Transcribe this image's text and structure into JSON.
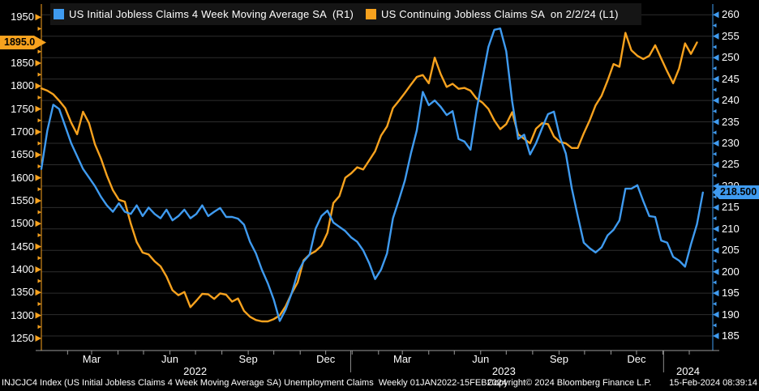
{
  "legend": {
    "series1_label": "US Initial Jobless Claims 4 Week Moving Average SA  (R1)",
    "series2_label": "US Continuing Jobless Claims SA  on 2/2/24 (L1)"
  },
  "badges": {
    "left_value": "1895.0",
    "right_value": "218.500"
  },
  "footer": {
    "left": "INJCJC4 Index (US Initial Jobless Claims 4 Week Moving Average SA) Unemployment Claims  Weekly 01JAN2022-15FEB2024",
    "center": "Copyright© 2024 Bloomberg Finance L.P.",
    "right": "15-Feb-2024 08:39:14"
  },
  "colors": {
    "blue": "#3f9bf0",
    "orange": "#f7a21e",
    "grid": "#2d2d2d",
    "axis_gray": "#9a9a9a",
    "separator": "#8a8a8a"
  },
  "chart_data": {
    "type": "line",
    "title": "",
    "x_axis": {
      "start": "01JAN2022",
      "end": "15FEB2024",
      "frequency": "weekly",
      "month_labels": [
        {
          "label": "Mar",
          "week": 8.43
        },
        {
          "label": "Jun",
          "week": 21.57
        },
        {
          "label": "Sep",
          "week": 34.71
        },
        {
          "label": "Dec",
          "week": 47.71
        },
        {
          "label": "Mar",
          "week": 60.57
        },
        {
          "label": "Jun",
          "week": 73.71
        },
        {
          "label": "Sep",
          "week": 86.86
        },
        {
          "label": "Dec",
          "week": 99.86
        }
      ],
      "year_labels": [
        {
          "label": "2022",
          "week": 25.8
        },
        {
          "label": "2023",
          "week": 77.6
        },
        {
          "label": "2024",
          "week": 108.5
        }
      ],
      "month_tick_weeks": [
        4.4,
        8.43,
        12.86,
        17.14,
        21.57,
        25.86,
        30.29,
        34.71,
        39.0,
        43.43,
        47.71,
        52.14,
        56.57,
        60.57,
        65.0,
        69.29,
        73.71,
        78.0,
        82.43,
        86.86,
        91.14,
        95.57,
        99.86,
        104.29,
        108.71
      ],
      "year_separator_weeks": [
        51.9,
        104.4
      ]
    },
    "left_axis": {
      "min": 1250,
      "max": 1950,
      "step": 50,
      "minor_step": 25,
      "label_ticks": [
        1950,
        1900,
        1850,
        1800,
        1750,
        1700,
        1650,
        1600,
        1550,
        1500,
        1450,
        1400,
        1350,
        1300,
        1250
      ]
    },
    "right_axis": {
      "min": 185,
      "max": 260,
      "step": 5,
      "minor_step": 2.5,
      "label_ticks": [
        260,
        255,
        250,
        245,
        240,
        235,
        230,
        225,
        220,
        215,
        210,
        205,
        200,
        195,
        190,
        185
      ]
    },
    "series": [
      {
        "name": "US Continuing Jobless Claims SA",
        "axis": "left",
        "color": "#f7a21e",
        "last_value": 1895.0,
        "values": [
          1795,
          1790,
          1782,
          1768,
          1752,
          1720,
          1695,
          1744,
          1719,
          1673,
          1642,
          1605,
          1573,
          1552,
          1548,
          1500,
          1460,
          1437,
          1433,
          1418,
          1407,
          1385,
          1355,
          1344,
          1351,
          1318,
          1332,
          1347,
          1346,
          1336,
          1348,
          1345,
          1330,
          1337,
          1310,
          1297,
          1290,
          1287,
          1287,
          1292,
          1300,
          1320,
          1348,
          1372,
          1420,
          1433,
          1440,
          1452,
          1480,
          1545,
          1560,
          1600,
          1610,
          1623,
          1618,
          1638,
          1658,
          1692,
          1712,
          1752,
          1768,
          1785,
          1803,
          1820,
          1824,
          1806,
          1862,
          1826,
          1798,
          1805,
          1794,
          1796,
          1790,
          1773,
          1764,
          1750,
          1725,
          1706,
          1717,
          1743,
          1695,
          1685,
          1675,
          1707,
          1719,
          1717,
          1690,
          1678,
          1675,
          1665,
          1665,
          1697,
          1725,
          1758,
          1779,
          1812,
          1848,
          1842,
          1916,
          1878,
          1866,
          1859,
          1866,
          1889,
          1860,
          1832,
          1806,
          1838,
          1893,
          1870,
          1895
        ]
      },
      {
        "name": "US Initial Jobless Claims 4 Week Moving Average SA",
        "axis": "right",
        "color": "#3f9bf0",
        "last_value": 218.5,
        "values": [
          224,
          233,
          239,
          238,
          234,
          230,
          227,
          224,
          222,
          220,
          217.5,
          215.5,
          214,
          216,
          214,
          213.5,
          215.5,
          213,
          215,
          213.5,
          212.5,
          214.5,
          212,
          213,
          214.5,
          212.5,
          213.5,
          215.5,
          213,
          214,
          214.9,
          212.8,
          212.8,
          212.4,
          211,
          207,
          204.3,
          200.5,
          197.3,
          193.5,
          188.5,
          191.2,
          195,
          199.7,
          202.4,
          204,
          210,
          213,
          214.3,
          211.5,
          210.5,
          209.5,
          208,
          207,
          205,
          202,
          198.3,
          200.5,
          204.3,
          212.5,
          216.8,
          221.3,
          227.6,
          233,
          242,
          238.9,
          240,
          238.5,
          236.6,
          237.5,
          231,
          230.4,
          228.5,
          237.5,
          245,
          252.5,
          256.5,
          256.8,
          251.5,
          239.8,
          231,
          232,
          227.4,
          230,
          233.5,
          236.8,
          237.4,
          231.5,
          227.6,
          219.5,
          213,
          206.8,
          205.5,
          204.5,
          205.7,
          208.5,
          209.8,
          212,
          219.4,
          219.4,
          220.2,
          216.5,
          213,
          212.8,
          207.3,
          206.8,
          203.5,
          202.6,
          201.2,
          206.4,
          211.1,
          218.5
        ]
      }
    ]
  }
}
